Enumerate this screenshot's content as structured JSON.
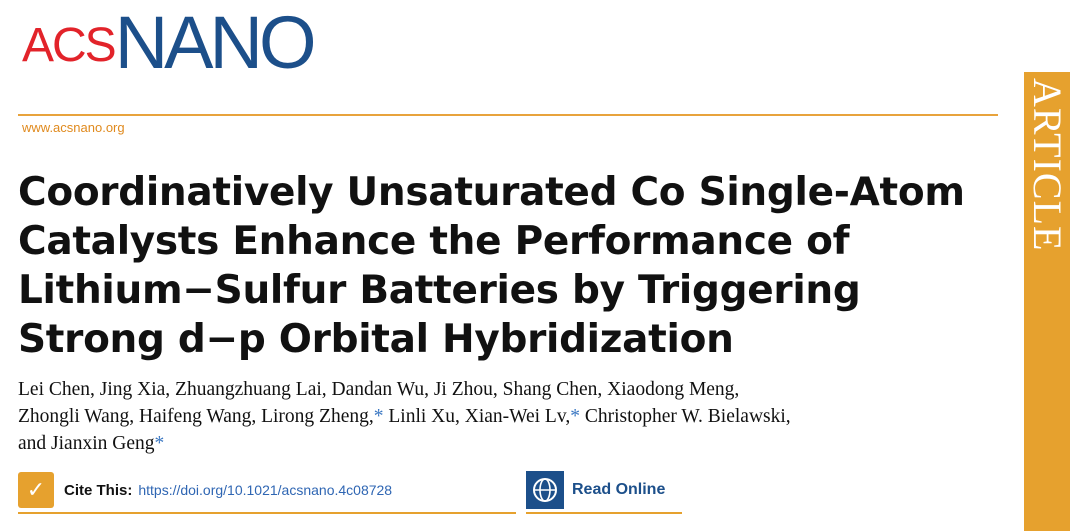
{
  "journal": {
    "logo_acs": "ACS",
    "logo_nano": "NANO",
    "url": "www.acsnano.org",
    "section": "ARTICLE"
  },
  "article": {
    "title": "Coordinatively Unsaturated Co Single-Atom Catalysts Enhance the Performance of Lithium−Sulfur Batteries by Triggering Strong d−p Orbital Hybridization",
    "authors_line1": "Lei Chen, Jing Xia, Zhuangzhuang Lai, Dandan Wu, Ji Zhou, Shang Chen, Xiaodong Meng,",
    "authors_line2a": "Zhongli Wang, Haifeng Wang, Lirong Zheng,",
    "authors_line2b": " Linli Xu, Xian-Wei Lv,",
    "authors_line2c": " Christopher W. Bielawski,",
    "authors_line3a": "and Jianxin Geng",
    "star": "*"
  },
  "cite": {
    "label": "Cite This:",
    "doi": "https://doi.org/10.1021/acsnano.4c08728"
  },
  "read": {
    "label": "Read Online"
  },
  "colors": {
    "accent": "#e6a12e",
    "brand_blue": "#1c4f8a",
    "brand_red": "#e2232a",
    "link": "#2f66b3"
  }
}
